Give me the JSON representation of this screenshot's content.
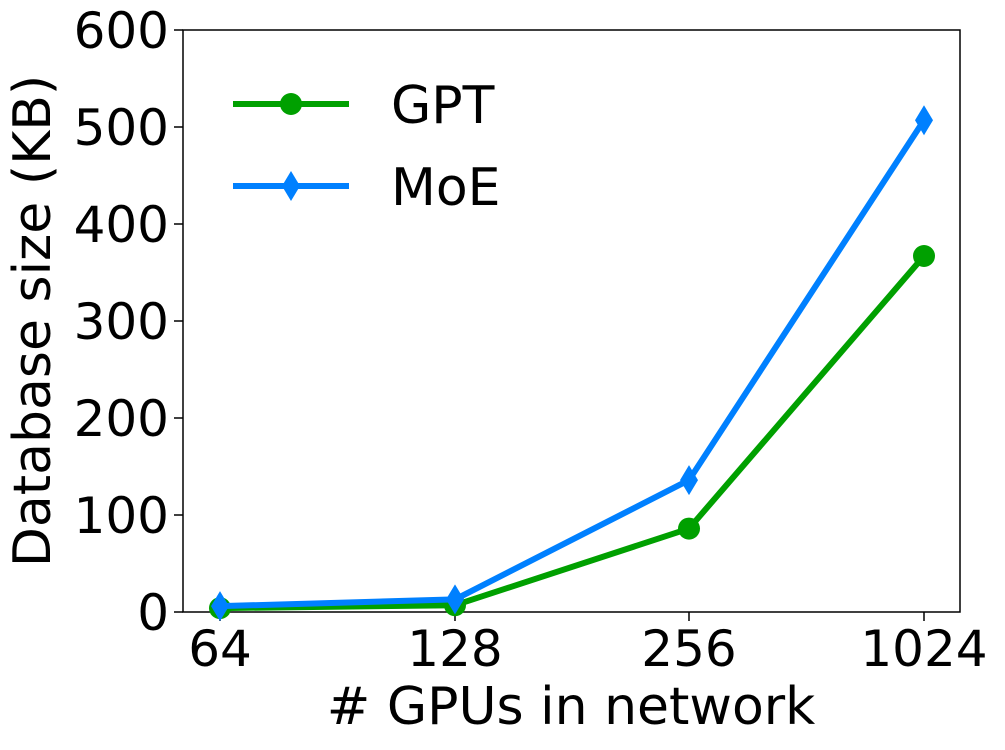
{
  "chart_data": {
    "type": "line",
    "title": "",
    "xlabel": "# GPUs in network",
    "ylabel": "Database size (KB)",
    "categories": [
      "64",
      "128",
      "256",
      "1024"
    ],
    "ylim": [
      0,
      600
    ],
    "yticks": [
      0,
      100,
      200,
      300,
      400,
      500,
      600
    ],
    "grid": false,
    "legend_position": "top-left",
    "series": [
      {
        "name": "GPT",
        "values": [
          4,
          7,
          86,
          367
        ],
        "color": "#00a000",
        "marker": "circle"
      },
      {
        "name": "MoE",
        "values": [
          6,
          13,
          136,
          507
        ],
        "color": "#0080ff",
        "marker": "diamond"
      }
    ]
  }
}
